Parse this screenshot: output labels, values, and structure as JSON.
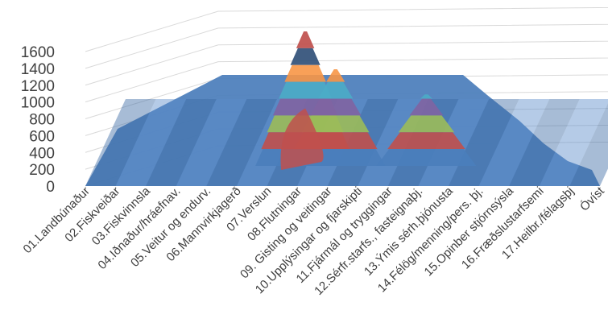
{
  "chart_data": {
    "type": "area",
    "subtype": "3d-surface",
    "title": "",
    "xlabel": "",
    "ylabel": "",
    "ylim": [
      0,
      1600
    ],
    "yticks": [
      0,
      200,
      400,
      600,
      800,
      1000,
      1200,
      1400,
      1600
    ],
    "grid": true,
    "legend": "none",
    "categories": [
      "01.Landbúnaður",
      "02.Fiskveiðar",
      "03.Fiskvinnsla",
      "04.Iðnaður/hráefnav.",
      "05.Veitur og endurv.",
      "06.Mannvirkjagerð",
      "07.Verslun",
      "08.Flutningar",
      "09. Gisting og veitingar",
      "10.Upplýsingar og fjarskipti",
      "11.Fjármál og tryggingar",
      "12.Sérfr.starfs., fasteignaþj.",
      "13.Ýmis sérh.þjónusta",
      "14.Félög/menning/pers. þj.",
      "15.Opinber stjórnsýsla",
      "16.Fræðslustarfsemi",
      "17.Heilbr./félagsþj",
      "Óvíst"
    ],
    "front_series_values": [
      0,
      0,
      0,
      0,
      0,
      0,
      0,
      350,
      0,
      0,
      0,
      0,
      0,
      0,
      0,
      0,
      0,
      0
    ],
    "peak_values": [
      0,
      0,
      0,
      0,
      0,
      0,
      0,
      1600,
      1150,
      0,
      0,
      850,
      0,
      0,
      0,
      0,
      0,
      0
    ],
    "band_colors": [
      "#4a7ebb",
      "#c0504d",
      "#9bbb59",
      "#8064a2",
      "#4bacc6",
      "#f79646",
      "#2c4d75",
      "#be4b48"
    ],
    "surface_color": "#4f81bd",
    "grid_color": "#d9d9d9"
  }
}
